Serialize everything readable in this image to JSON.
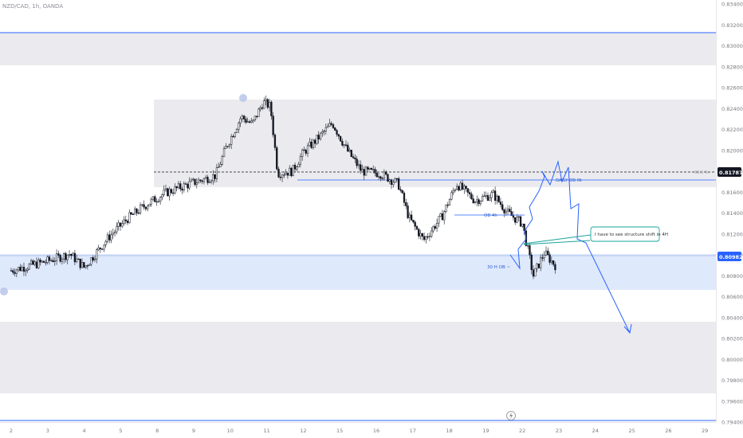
{
  "header": {
    "symbol": "NZD/CAD, 1h, OANDA"
  },
  "price_scale": {
    "labels": [
      "0.83400",
      "0.83200",
      "0.83000",
      "0.82800",
      "0.82600",
      "0.82400",
      "0.82200",
      "0.82000",
      "0.81800",
      "0.81600",
      "0.81400",
      "0.81200",
      "0.81000",
      "0.80800",
      "0.80600",
      "0.80400",
      "0.80200",
      "0.80000",
      "0.79800",
      "0.79600",
      "0.79400"
    ],
    "current_price": "0.80982",
    "dashed_level": "0.81787",
    "current_price_color": "#2962ff",
    "dashed_level_color": "#131722"
  },
  "time_axis": {
    "labels": [
      "2",
      "3",
      "4",
      "5",
      "8",
      "9",
      "10",
      "11",
      "12",
      "15",
      "16",
      "17",
      "18",
      "19",
      "22",
      "23",
      "24",
      "25",
      "26",
      "29"
    ]
  },
  "annotations": {
    "fib_label": "68.6 %",
    "daily_ob": "DAILY OB IN",
    "ob_4h": "OB 4h",
    "ob_30m": "30 H OB ~",
    "callout": "I have to see structure shift in 4H"
  },
  "colors": {
    "bullish": "#131722",
    "bearish": "#131722",
    "projection": "#2962ff",
    "zone_gray": "#ebebef",
    "zone_blue": "#dfe9fc",
    "callout_border": "#1aa39a"
  },
  "icons": {
    "flash": "lightning-bolt-icon"
  },
  "chart_data": {
    "type": "candlestick",
    "symbol": "NZD/CAD",
    "timeframe": "1h",
    "y_range": [
      0.794,
      0.834
    ],
    "x_ticks": [
      "2",
      "3",
      "4",
      "5",
      "8",
      "9",
      "10",
      "11",
      "12",
      "15",
      "16",
      "17",
      "18",
      "19",
      "22",
      "23",
      "24",
      "25",
      "26",
      "29"
    ],
    "close_path": [
      [
        0,
        0.8085
      ],
      [
        1.0,
        0.8094
      ],
      [
        1.6,
        0.8101
      ],
      [
        2.0,
        0.8088
      ],
      [
        2.7,
        0.8118
      ],
      [
        3.2,
        0.8135
      ],
      [
        3.7,
        0.8148
      ],
      [
        4.2,
        0.8159
      ],
      [
        4.9,
        0.8168
      ],
      [
        5.6,
        0.8176
      ],
      [
        5.9,
        0.8204
      ],
      [
        6.3,
        0.8232
      ],
      [
        6.6,
        0.8225
      ],
      [
        6.9,
        0.8246
      ],
      [
        7.1,
        0.8242
      ],
      [
        7.3,
        0.8178
      ],
      [
        7.7,
        0.818
      ],
      [
        8.0,
        0.8198
      ],
      [
        8.3,
        0.8208
      ],
      [
        8.8,
        0.8226
      ],
      [
        9.2,
        0.82
      ],
      [
        9.6,
        0.818
      ],
      [
        10.1,
        0.8178
      ],
      [
        10.6,
        0.8168
      ],
      [
        10.9,
        0.8135
      ],
      [
        11.3,
        0.8114
      ],
      [
        11.8,
        0.8137
      ],
      [
        12.2,
        0.8168
      ],
      [
        12.7,
        0.8152
      ],
      [
        13.2,
        0.8158
      ],
      [
        13.6,
        0.814
      ],
      [
        14.0,
        0.813
      ],
      [
        14.3,
        0.808
      ],
      [
        14.6,
        0.8102
      ],
      [
        14.9,
        0.809
      ]
    ],
    "dashed_level": 0.81787,
    "current_price": 0.80982
  }
}
